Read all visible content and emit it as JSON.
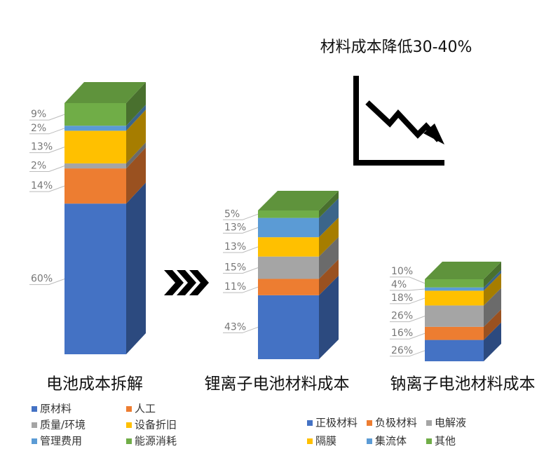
{
  "headline": "材料成本降低30-40%",
  "chart_data": [
    {
      "type": "stacked_bar3d",
      "title": "电池成本拆解",
      "series": [
        {
          "name": "原材料",
          "color": "#4472c4",
          "values": [
            60
          ],
          "value_labels": [
            "60%"
          ]
        },
        {
          "name": "人工",
          "color": "#ed7d31",
          "values": [
            14
          ],
          "value_labels": [
            "14%"
          ]
        },
        {
          "name": "质量/环境",
          "color": "#a5a5a5",
          "values": [
            2
          ],
          "value_labels": [
            "2%"
          ]
        },
        {
          "name": "设备折旧",
          "color": "#ffc000",
          "values": [
            13
          ],
          "value_labels": [
            "13%"
          ]
        },
        {
          "name": "管理费用",
          "color": "#5b9bd5",
          "values": [
            2
          ],
          "value_labels": [
            "2%"
          ]
        },
        {
          "name": "能源消耗",
          "color": "#70ad47",
          "values": [
            9
          ],
          "value_labels": [
            "9%"
          ]
        }
      ]
    },
    {
      "type": "stacked_bar3d",
      "title": "锂离子电池材料成本",
      "series": [
        {
          "name": "正极材料",
          "color": "#4472c4",
          "values": [
            43
          ],
          "value_labels": [
            "43%"
          ]
        },
        {
          "name": "负极材料",
          "color": "#ed7d31",
          "values": [
            11
          ],
          "value_labels": [
            "11%"
          ]
        },
        {
          "name": "电解液",
          "color": "#a5a5a5",
          "values": [
            15
          ],
          "value_labels": [
            "15%"
          ]
        },
        {
          "name": "隔膜",
          "color": "#ffc000",
          "values": [
            13
          ],
          "value_labels": [
            "13%"
          ]
        },
        {
          "name": "集流体",
          "color": "#5b9bd5",
          "values": [
            13
          ],
          "value_labels": [
            "13%"
          ]
        },
        {
          "name": "其他",
          "color": "#70ad47",
          "values": [
            5
          ],
          "value_labels": [
            "5%"
          ]
        }
      ]
    },
    {
      "type": "stacked_bar3d",
      "title": "钠离子电池材料成本",
      "series": [
        {
          "color": "#4472c4",
          "values": [
            26
          ],
          "value_labels": [
            "26%"
          ]
        },
        {
          "color": "#ed7d31",
          "values": [
            16
          ],
          "value_labels": [
            "16%"
          ]
        },
        {
          "color": "#a5a5a5",
          "values": [
            26
          ],
          "value_labels": [
            "26%"
          ]
        },
        {
          "color": "#ffc000",
          "values": [
            18
          ],
          "value_labels": [
            "18%"
          ]
        },
        {
          "color": "#5b9bd5",
          "values": [
            4
          ],
          "value_labels": [
            "4%"
          ]
        },
        {
          "color": "#70ad47",
          "values": [
            10
          ],
          "value_labels": [
            "10%"
          ]
        }
      ]
    }
  ]
}
